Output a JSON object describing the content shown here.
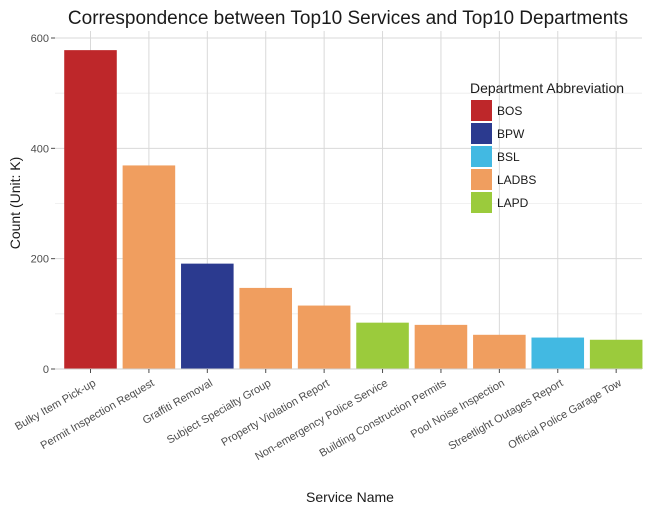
{
  "chart_data": {
    "type": "bar",
    "title": "Correspondence between Top10 Services and Top10 Departments",
    "xlabel": "Service Name",
    "ylabel": "Count (Unit: K)",
    "ylim": [
      0,
      600
    ],
    "yticks": [
      0,
      200,
      400,
      600
    ],
    "grid": true,
    "legend_placement": "top-right",
    "legend_title": "Department Abbreviation",
    "legend": [
      {
        "name": "BOS",
        "color": "#BE272A"
      },
      {
        "name": "BPW",
        "color": "#2B3A8F"
      },
      {
        "name": "BSL",
        "color": "#42B9E2"
      },
      {
        "name": "LADBS",
        "color": "#F09E5F"
      },
      {
        "name": "LAPD",
        "color": "#9BCB3C"
      }
    ],
    "categories": [
      "Bulky Item Pick-up",
      "Permit Inspection Request",
      "Graffiti Removal",
      "Subject Specialty Group",
      "Property Violation Report",
      "Non-emergency Police Service",
      "Building Construction Permits",
      "Pool Noise Inspection",
      "Streetlight Outages Report",
      "Official Police Garage Tow"
    ],
    "values": [
      578,
      369,
      191,
      147,
      115,
      84,
      80,
      62,
      57,
      53
    ],
    "departments": [
      "BOS",
      "LADBS",
      "BPW",
      "LADBS",
      "LADBS",
      "LAPD",
      "LADBS",
      "LADBS",
      "BSL",
      "LAPD"
    ]
  }
}
